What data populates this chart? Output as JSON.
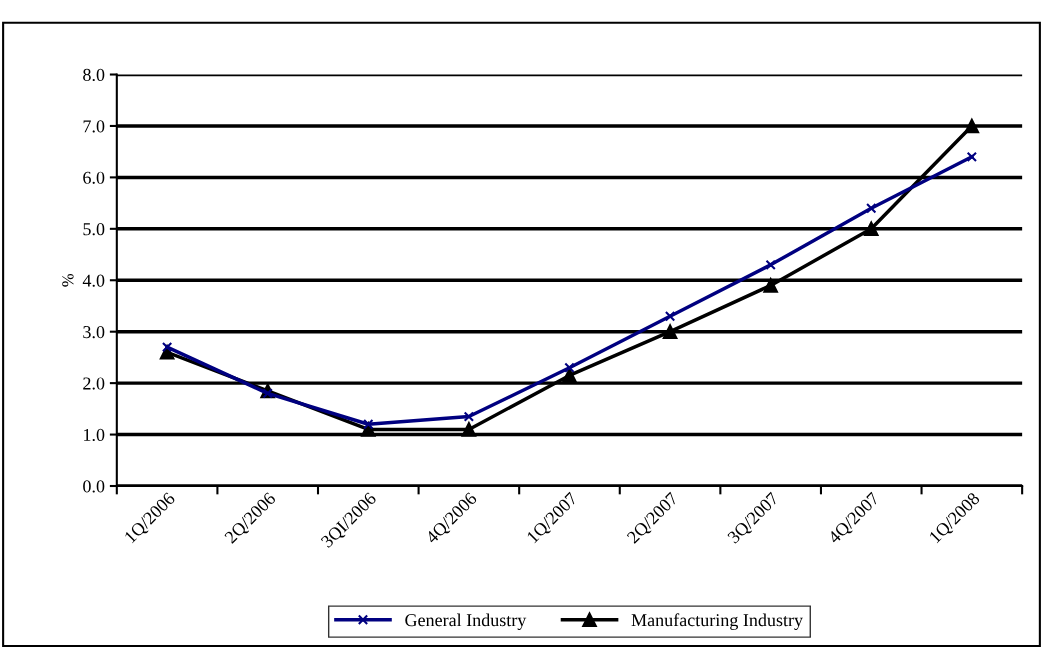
{
  "chart_data": {
    "type": "line",
    "ylabel": "%",
    "categories": [
      "1Q/2006",
      "2Q/2006",
      "3QI/2006",
      "4Q/2006",
      "1Q/2007",
      "2Q/2007",
      "3Q/2007",
      "4Q/2007",
      "1Q/2008"
    ],
    "series": [
      {
        "name": "General Industry",
        "color": "#000080",
        "marker": "cross",
        "values": [
          2.7,
          1.8,
          1.2,
          1.35,
          2.3,
          3.3,
          4.3,
          5.4,
          6.4
        ]
      },
      {
        "name": "Manufacturing Industry",
        "color": "#000000",
        "marker": "triangle",
        "values": [
          2.6,
          1.85,
          1.1,
          1.1,
          2.15,
          3.0,
          3.9,
          5.0,
          7.0
        ]
      }
    ],
    "ylim": [
      0,
      8
    ],
    "yticks": [
      {
        "value": 0,
        "label": "0.0"
      },
      {
        "value": 1,
        "label": "1.0"
      },
      {
        "value": 2,
        "label": "2.0"
      },
      {
        "value": 3,
        "label": "3.0"
      },
      {
        "value": 4,
        "label": "4.0"
      },
      {
        "value": 5,
        "label": "5.0"
      },
      {
        "value": 6,
        "label": "6.0"
      },
      {
        "value": 7,
        "label": "7.0"
      },
      {
        "value": 8,
        "label": "8.0"
      }
    ],
    "grid": "y",
    "legend": "bottom",
    "line_style": "solid"
  }
}
